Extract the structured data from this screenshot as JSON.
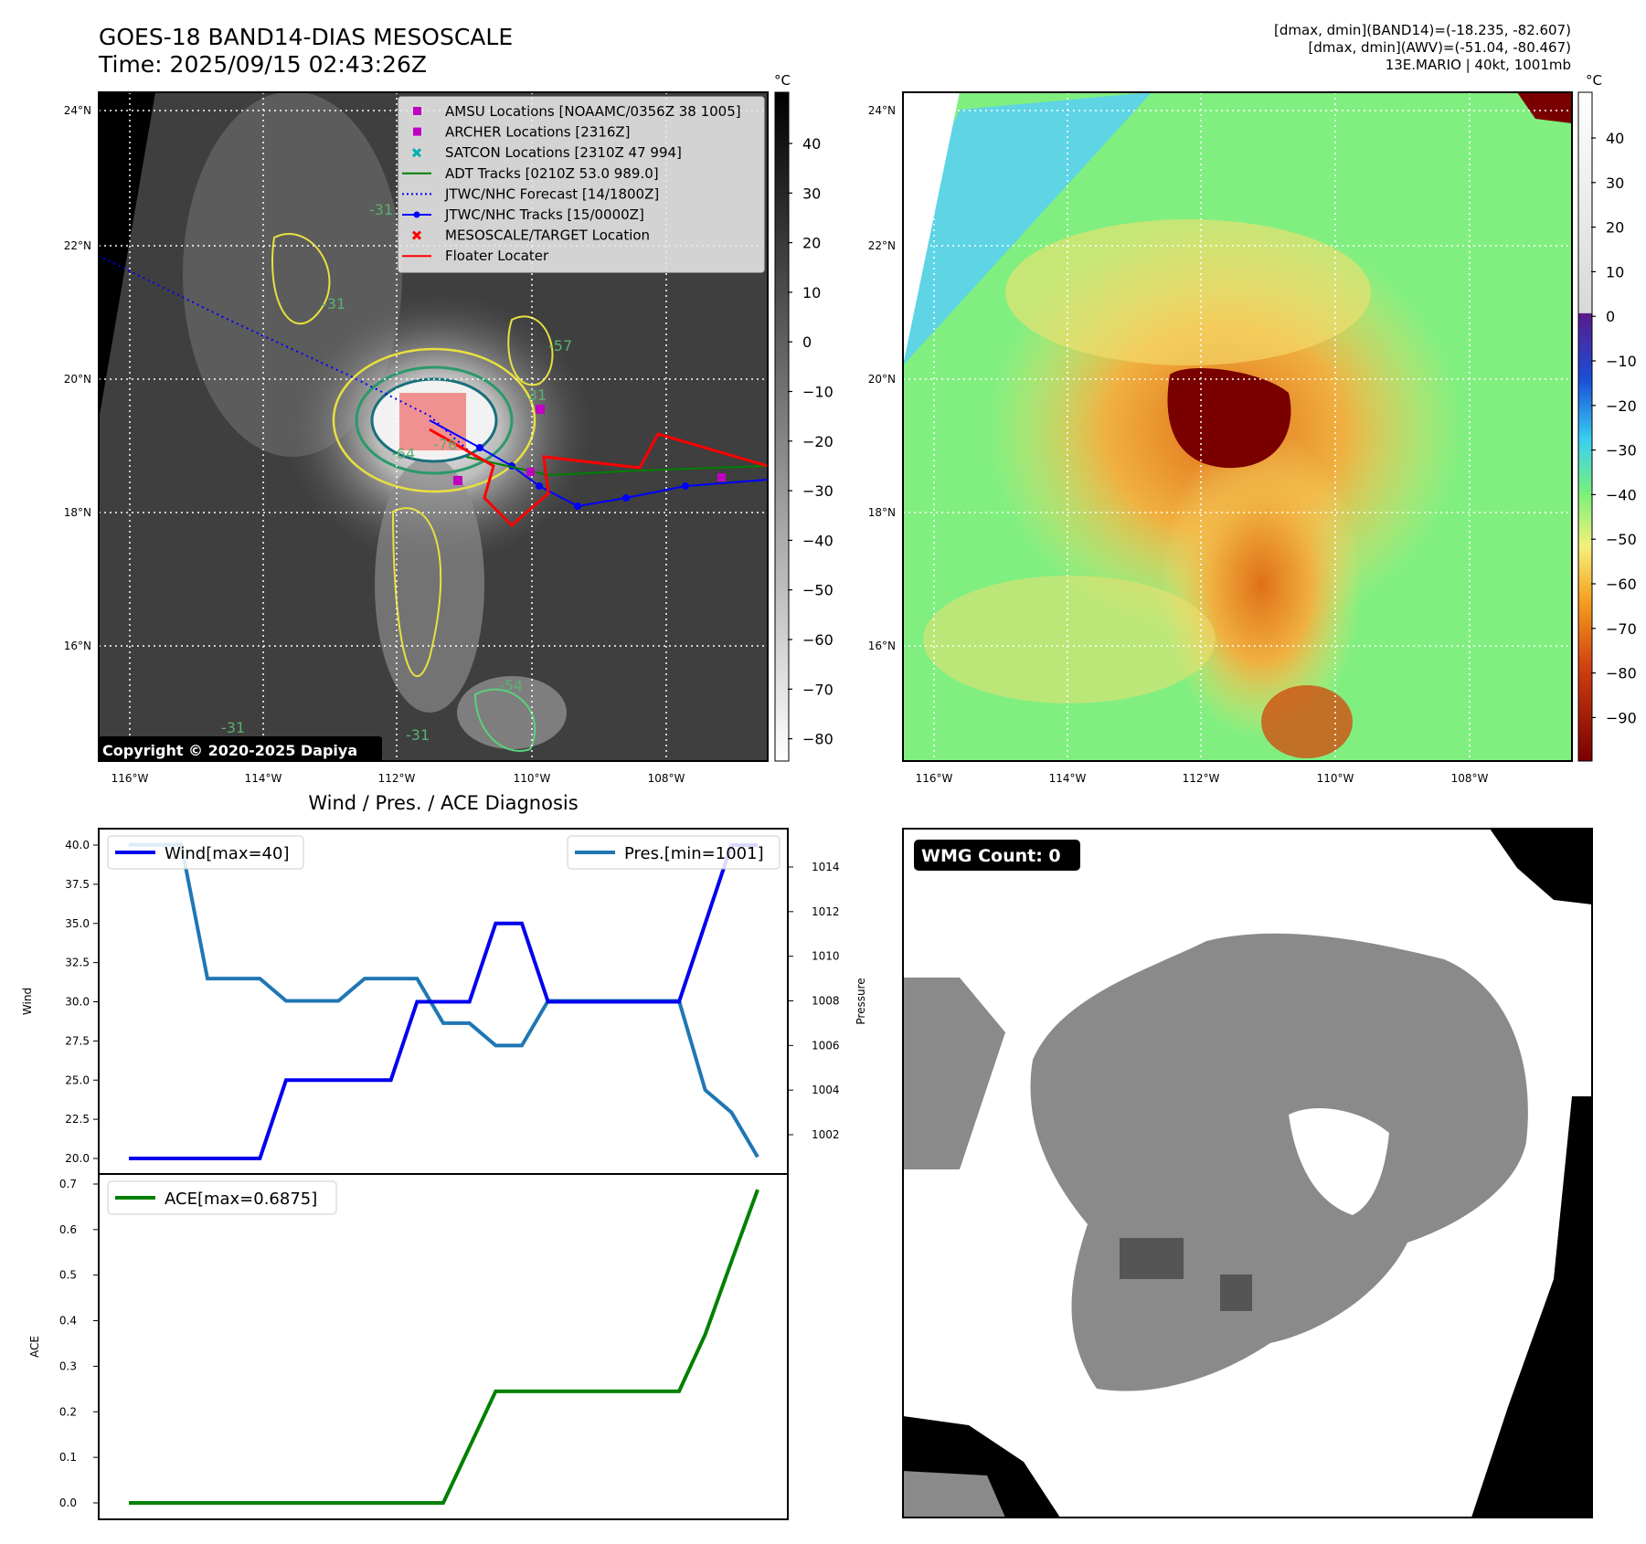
{
  "header": {
    "title": "GOES-18 BAND14-DIAS MESOSCALE",
    "time": "Time: 2025/09/15 02:43:26Z",
    "info_line1": "[dmax, dmin](BAND14)=(-18.235, -82.607)",
    "info_line2": "[dmax, dmin](AWV)=(-51.04, -80.467)",
    "info_line3": "13E.MARIO | 40kt, 1001mb"
  },
  "ir_map": {
    "lat_ticks": [
      "24°N",
      "22°N",
      "20°N",
      "18°N",
      "16°N"
    ],
    "lon_ticks": [
      "116°W",
      "114°W",
      "112°W",
      "110°W",
      "108°W"
    ],
    "colorbar_unit": "°C",
    "colorbar_ticks": [
      "40",
      "30",
      "20",
      "10",
      "0",
      "−10",
      "−20",
      "−30",
      "−40",
      "−50",
      "−60",
      "−70",
      "−80"
    ],
    "copyright": "Copyright © 2020-2025 Dapiya",
    "contour_labels": [
      "-31",
      "-31",
      "-31",
      "-57",
      "-64",
      "-76",
      "-31",
      "-54",
      "-31"
    ],
    "legend": [
      {
        "label": "AMSU Locations [NOAAMC/0356Z 38 1005]",
        "marker": "square",
        "color": "#c000c0"
      },
      {
        "label": "ARCHER Locations [2316Z]",
        "marker": "square",
        "color": "#c000c0"
      },
      {
        "label": "SATCON Locations [2310Z 47 994]",
        "marker": "x",
        "color": "#00b0b0"
      },
      {
        "label": "ADT Tracks [0210Z 53.0 989.0]",
        "marker": "line",
        "color": "#008000"
      },
      {
        "label": "JTWC/NHC Forecast [14/1800Z]",
        "marker": "dotted",
        "color": "#0000ff"
      },
      {
        "label": "JTWC/NHC Tracks [15/0000Z]",
        "marker": "line-dot",
        "color": "#0000ff"
      },
      {
        "label": "MESOSCALE/TARGET Location",
        "marker": "x",
        "color": "#ff0000"
      },
      {
        "label": "Floater Locater",
        "marker": "line",
        "color": "#ff0000"
      }
    ]
  },
  "awv_map": {
    "lat_ticks": [
      "24°N",
      "22°N",
      "20°N",
      "18°N",
      "16°N"
    ],
    "lon_ticks": [
      "116°W",
      "114°W",
      "112°W",
      "110°W",
      "108°W"
    ],
    "colorbar_unit": "°C",
    "colorbar_ticks": [
      "40",
      "30",
      "20",
      "10",
      "0",
      "−10",
      "−20",
      "−30",
      "−40",
      "−50",
      "−60",
      "−70",
      "−80",
      "−90"
    ]
  },
  "diagnosis": {
    "title": "Wind / Pres. / ACE Diagnosis",
    "wind_ylabel": "Wind",
    "pres_ylabel": "Pressure",
    "ace_ylabel": "ACE",
    "wind_legend": "Wind[max=40]",
    "pres_legend": "Pres.[min=1001]",
    "ace_legend": "ACE[max=0.6875]",
    "wind_ticks": [
      "40.0",
      "37.5",
      "35.0",
      "32.5",
      "30.0",
      "27.5",
      "25.0",
      "22.5",
      "20.0"
    ],
    "pres_ticks": [
      "1014",
      "1012",
      "1010",
      "1008",
      "1006",
      "1004",
      "1002"
    ],
    "ace_ticks": [
      "0.7",
      "0.6",
      "0.5",
      "0.4",
      "0.3",
      "0.2",
      "0.1",
      "0.0"
    ],
    "colors": {
      "wind": "#0000ee",
      "pres": "#1f77b4",
      "ace": "#008000"
    }
  },
  "wmg": {
    "label": "WMG Count: 0"
  },
  "chart_data": [
    {
      "type": "line",
      "x": [
        0,
        1,
        2,
        3,
        4,
        5,
        6,
        7,
        8,
        9,
        10,
        11,
        12,
        13,
        14,
        15,
        16,
        17,
        18,
        19,
        20,
        21,
        22,
        23,
        24
      ],
      "series": [
        {
          "name": "Wind[max=40]",
          "axis": "left",
          "values": [
            20,
            20,
            20,
            20,
            20,
            20,
            25,
            25,
            25,
            25,
            25,
            30,
            30,
            30,
            35,
            35,
            30,
            30,
            30,
            30,
            30,
            30,
            35,
            40,
            40
          ]
        },
        {
          "name": "Pres.[min=1001]",
          "axis": "right",
          "values": [
            1015,
            1015,
            1015,
            1009,
            1009,
            1009,
            1008,
            1008,
            1008,
            1009,
            1009,
            1009,
            1007,
            1007,
            1006,
            1006,
            1008,
            1008,
            1008,
            1008,
            1008,
            1008,
            1004,
            1003,
            1001
          ]
        }
      ],
      "ylabel": "Wind",
      "y2label": "Pressure",
      "ylim": [
        19.5,
        41
      ],
      "y2lim": [
        1000.5,
        1015.5
      ]
    },
    {
      "type": "line",
      "x": [
        0,
        1,
        2,
        3,
        4,
        5,
        6,
        7,
        8,
        9,
        10,
        11,
        12,
        13,
        14,
        15,
        16,
        17,
        18,
        19,
        20,
        21,
        22,
        23,
        24
      ],
      "series": [
        {
          "name": "ACE[max=0.6875]",
          "values": [
            0,
            0,
            0,
            0,
            0,
            0,
            0,
            0,
            0,
            0,
            0,
            0,
            0,
            0.1225,
            0.245,
            0.245,
            0.245,
            0.245,
            0.245,
            0.245,
            0.245,
            0.245,
            0.37,
            0.53,
            0.6875
          ]
        }
      ],
      "ylabel": "ACE",
      "ylim": [
        -0.035,
        0.72
      ]
    }
  ]
}
